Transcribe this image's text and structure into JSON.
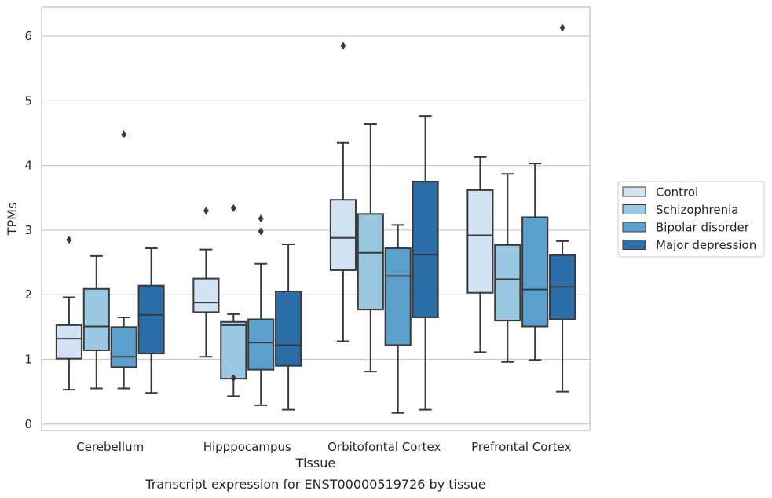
{
  "caption": "Transcript expression for ENST00000519726 by tissue",
  "colors": {
    "Control": "#d2e3f3",
    "Schizophrenia": "#9ac8e0",
    "Bipolar disorder": "#5aa0cd",
    "Major depression": "#2a6eaa",
    "line": "#3a3a3a",
    "grid": "#cccccc",
    "frame": "#cccccc"
  },
  "chart_data": {
    "type": "box",
    "title": "",
    "xlabel": "Tissue",
    "ylabel": "TPMs",
    "ylim": [
      -0.1,
      6.45
    ],
    "yticks": [
      0,
      1,
      2,
      3,
      4,
      5,
      6
    ],
    "grid": true,
    "legend_position": "right-outside",
    "categories": [
      "Cerebellum",
      "Hipppocampus",
      "Orbitofontal Cortex",
      "Prefrontal Cortex"
    ],
    "series": [
      {
        "name": "Control",
        "boxes": [
          {
            "whisker_low": 0.53,
            "q1": 1.01,
            "median": 1.32,
            "q3": 1.53,
            "whisker_high": 1.96,
            "outliers": [
              2.85
            ]
          },
          {
            "whisker_low": 1.04,
            "q1": 1.73,
            "median": 1.88,
            "q3": 2.25,
            "whisker_high": 2.7,
            "outliers": [
              3.3
            ]
          },
          {
            "whisker_low": 1.28,
            "q1": 2.38,
            "median": 2.88,
            "q3": 3.47,
            "whisker_high": 4.35,
            "outliers": [
              5.85
            ]
          },
          {
            "whisker_low": 1.11,
            "q1": 2.03,
            "median": 2.92,
            "q3": 3.62,
            "whisker_high": 4.13,
            "outliers": []
          }
        ]
      },
      {
        "name": "Schizophrenia",
        "boxes": [
          {
            "whisker_low": 0.55,
            "q1": 1.14,
            "median": 1.51,
            "q3": 2.09,
            "whisker_high": 2.6,
            "outliers": []
          },
          {
            "whisker_low": 0.43,
            "q1": 0.7,
            "median": 1.53,
            "q3": 1.58,
            "whisker_high": 1.7,
            "outliers": [
              0.71,
              3.34
            ]
          },
          {
            "whisker_low": 0.81,
            "q1": 1.77,
            "median": 2.65,
            "q3": 3.25,
            "whisker_high": 4.64,
            "outliers": []
          },
          {
            "whisker_low": 0.96,
            "q1": 1.6,
            "median": 2.24,
            "q3": 2.77,
            "whisker_high": 3.87,
            "outliers": []
          }
        ]
      },
      {
        "name": "Bipolar disorder",
        "boxes": [
          {
            "whisker_low": 0.55,
            "q1": 0.88,
            "median": 1.04,
            "q3": 1.5,
            "whisker_high": 1.65,
            "outliers": [
              4.48
            ]
          },
          {
            "whisker_low": 0.29,
            "q1": 0.84,
            "median": 1.26,
            "q3": 1.62,
            "whisker_high": 2.48,
            "outliers": [
              2.98,
              3.18
            ]
          },
          {
            "whisker_low": 0.17,
            "q1": 1.22,
            "median": 2.29,
            "q3": 2.72,
            "whisker_high": 3.08,
            "outliers": []
          },
          {
            "whisker_low": 0.99,
            "q1": 1.51,
            "median": 2.08,
            "q3": 3.2,
            "whisker_high": 4.03,
            "outliers": []
          }
        ]
      },
      {
        "name": "Major depression",
        "boxes": [
          {
            "whisker_low": 0.48,
            "q1": 1.09,
            "median": 1.69,
            "q3": 2.14,
            "whisker_high": 2.72,
            "outliers": []
          },
          {
            "whisker_low": 0.22,
            "q1": 0.9,
            "median": 1.22,
            "q3": 2.05,
            "whisker_high": 2.78,
            "outliers": []
          },
          {
            "whisker_low": 0.22,
            "q1": 1.65,
            "median": 2.62,
            "q3": 3.75,
            "whisker_high": 4.76,
            "outliers": []
          },
          {
            "whisker_low": 0.5,
            "q1": 1.62,
            "median": 2.12,
            "q3": 2.61,
            "whisker_high": 2.83,
            "outliers": [
              6.13
            ]
          }
        ]
      }
    ]
  }
}
